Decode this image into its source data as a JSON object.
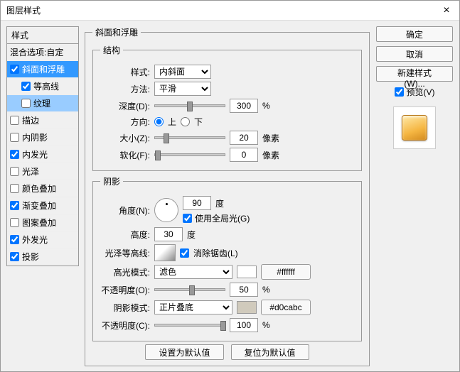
{
  "title": "图层样式",
  "left": {
    "header": "样式",
    "blend": "混合选项:自定",
    "items": [
      {
        "label": "斜面和浮雕",
        "chk": true,
        "sel": true
      },
      {
        "label": "等高线",
        "chk": true,
        "sub": true
      },
      {
        "label": "纹理",
        "chk": false,
        "sub": true,
        "subsel": true
      },
      {
        "label": "描边",
        "chk": false
      },
      {
        "label": "内阴影",
        "chk": false
      },
      {
        "label": "内发光",
        "chk": true
      },
      {
        "label": "光泽",
        "chk": false
      },
      {
        "label": "颜色叠加",
        "chk": false
      },
      {
        "label": "渐变叠加",
        "chk": true
      },
      {
        "label": "图案叠加",
        "chk": false
      },
      {
        "label": "外发光",
        "chk": true
      },
      {
        "label": "投影",
        "chk": true
      }
    ]
  },
  "bevel": {
    "groupTitle": "斜面和浮雕",
    "structTitle": "结构",
    "styleLbl": "样式:",
    "styleVal": "内斜面",
    "methodLbl": "方法:",
    "methodVal": "平滑",
    "depthLbl": "深度(D):",
    "depthVal": "300",
    "depthUnit": "%",
    "dirLbl": "方向:",
    "dirUp": "上",
    "dirDown": "下",
    "dirSel": "up",
    "sizeLbl": "大小(Z):",
    "sizeVal": "20",
    "sizeUnit": "像素",
    "softLbl": "软化(F):",
    "softVal": "0",
    "softUnit": "像素",
    "shadeTitle": "阴影",
    "angleLbl": "角度(N):",
    "angleVal": "90",
    "angleUnit": "度",
    "globalChk": true,
    "globalLbl": "使用全局光(G)",
    "altLbl": "高度:",
    "altVal": "30",
    "altUnit": "度",
    "glossLbl": "光泽等高线:",
    "antiChk": true,
    "antiLbl": "消除锯齿(L)",
    "hiModeLbl": "高光模式:",
    "hiModeVal": "滤色",
    "hiColor": "#ffffff",
    "hiColorLbl": "#ffffff",
    "hiOpLbl": "不透明度(O):",
    "hiOpVal": "50",
    "hiOpUnit": "%",
    "shModeLbl": "阴影模式:",
    "shModeVal": "正片叠底",
    "shColor": "#d0cabc",
    "shColorLbl": "#d0cabc",
    "shOpLbl": "不透明度(C):",
    "shOpVal": "100",
    "shOpUnit": "%",
    "defaultBtn": "设置为默认值",
    "resetBtn": "复位为默认值"
  },
  "right": {
    "ok": "确定",
    "cancel": "取消",
    "newStyle": "新建样式(W)...",
    "previewChk": true,
    "previewLbl": "预览(V)"
  },
  "sliderPos": {
    "depth": 45,
    "size": 12,
    "soft": 0,
    "hiOp": 48,
    "shOp": 92
  }
}
